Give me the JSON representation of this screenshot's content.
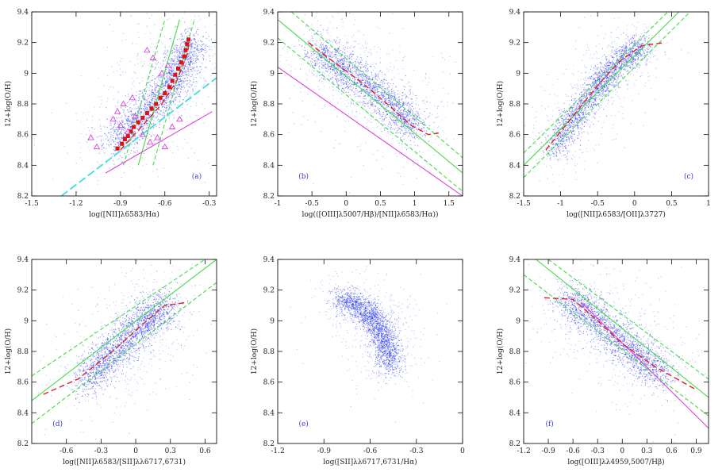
{
  "figure": {
    "panel_count": 6,
    "layout": "2x3 grid"
  },
  "colors": {
    "scatter": "#2233ee",
    "fit_solid": "#44dd44",
    "fit_dashed": "#44dd44",
    "median": "#dd2222",
    "cyan_line": "#44dddd",
    "magenta": "#dd44dd",
    "marker": "#dd1111",
    "panel_label": "#3a3ad0"
  },
  "chart_data": [
    {
      "type": "scatter",
      "id": "a",
      "label": "(a)",
      "xlabel": "log([NII]λ6583/Hα)",
      "ylabel": "12+log(O/H)",
      "xlim": [
        -1.5,
        -0.25
      ],
      "ylim": [
        8.2,
        9.4
      ],
      "xticks": [
        -1.5,
        -1.2,
        -0.9,
        -0.6,
        -0.3
      ],
      "xtick_labels": [
        "-1.5",
        "-1.2",
        "-0.9",
        "-0.6",
        "-0.3"
      ],
      "yticks": [
        8.2,
        8.4,
        8.6,
        8.8,
        9.0,
        9.2,
        9.4
      ],
      "ytick_labels": [
        "8.2",
        "8.4",
        "8.6",
        "8.8",
        "9",
        "9.2",
        "9.4"
      ],
      "cloud": {
        "n": 2200,
        "path": [
          [
            -0.95,
            8.55
          ],
          [
            -0.8,
            8.68
          ],
          [
            -0.65,
            8.82
          ],
          [
            -0.55,
            8.95
          ],
          [
            -0.47,
            9.1
          ],
          [
            -0.42,
            9.2
          ]
        ],
        "width": 0.05,
        "halo": 0.35
      },
      "lines": [
        {
          "name": "fit",
          "style": "solid",
          "color": "#44dd44",
          "points": [
            [
              -0.78,
              8.4
            ],
            [
              -0.5,
              9.35
            ]
          ]
        },
        {
          "name": "fit-upper",
          "style": "dashed",
          "color": "#44dd44",
          "points": [
            [
              -0.88,
              8.4
            ],
            [
              -0.6,
              9.35
            ]
          ]
        },
        {
          "name": "fit-lower",
          "style": "dashed",
          "color": "#44dd44",
          "points": [
            [
              -0.68,
              8.4
            ],
            [
              -0.4,
              9.35
            ]
          ]
        },
        {
          "name": "cyan",
          "style": "dashed",
          "color": "#44dddd",
          "points": [
            [
              -1.3,
              8.2
            ],
            [
              -0.25,
              8.97
            ]
          ]
        },
        {
          "name": "magenta",
          "style": "solid",
          "color": "#dd44dd",
          "points": [
            [
              -1.0,
              8.35
            ],
            [
              -0.28,
              8.75
            ]
          ]
        },
        {
          "name": "median",
          "style": "dashed",
          "color": "#dd2222",
          "points": [
            [
              -0.9,
              8.5
            ],
            [
              -0.75,
              8.66
            ],
            [
              -0.62,
              8.8
            ],
            [
              -0.52,
              8.95
            ],
            [
              -0.45,
              9.12
            ],
            [
              -0.43,
              9.22
            ]
          ]
        }
      ],
      "squares": [
        [
          -0.92,
          8.51
        ],
        [
          -0.89,
          8.54
        ],
        [
          -0.87,
          8.57
        ],
        [
          -0.85,
          8.59
        ],
        [
          -0.83,
          8.62
        ],
        [
          -0.81,
          8.65
        ],
        [
          -0.78,
          8.68
        ],
        [
          -0.75,
          8.71
        ],
        [
          -0.72,
          8.74
        ],
        [
          -0.69,
          8.77
        ],
        [
          -0.66,
          8.8
        ],
        [
          -0.63,
          8.84
        ],
        [
          -0.6,
          8.87
        ],
        [
          -0.57,
          8.91
        ],
        [
          -0.55,
          8.95
        ],
        [
          -0.53,
          8.99
        ],
        [
          -0.51,
          9.03
        ],
        [
          -0.49,
          9.07
        ],
        [
          -0.47,
          9.11
        ],
        [
          -0.46,
          9.15
        ],
        [
          -0.45,
          9.19
        ],
        [
          -0.44,
          9.22
        ]
      ],
      "triangles": [
        [
          -1.1,
          8.58
        ],
        [
          -1.06,
          8.52
        ],
        [
          -0.95,
          8.7
        ],
        [
          -0.9,
          8.66
        ],
        [
          -0.85,
          8.62
        ],
        [
          -0.8,
          8.72
        ],
        [
          -0.92,
          8.75
        ],
        [
          -0.75,
          8.6
        ],
        [
          -0.7,
          8.55
        ],
        [
          -0.65,
          8.58
        ],
        [
          -0.55,
          8.65
        ],
        [
          -0.6,
          8.52
        ],
        [
          -0.5,
          8.7
        ],
        [
          -0.88,
          8.8
        ],
        [
          -0.82,
          8.84
        ],
        [
          -0.62,
          9.0
        ],
        [
          -0.68,
          9.1
        ],
        [
          -0.72,
          9.15
        ],
        [
          -0.58,
          9.05
        ]
      ]
    },
    {
      "type": "scatter",
      "id": "b",
      "label": "(b)",
      "xlabel": "log(([OIII]λ5007/Hβ)/[NII]λ6583/Hα))",
      "ylabel": "12+log(O/H)",
      "xlim": [
        -1.0,
        1.7
      ],
      "ylim": [
        8.2,
        9.4
      ],
      "xticks": [
        -1.0,
        -0.5,
        0,
        0.5,
        1.0,
        1.5
      ],
      "xtick_labels": [
        "-1",
        "-0.5",
        "0",
        "0.5",
        "1",
        "1.5"
      ],
      "yticks": [
        8.2,
        8.4,
        8.6,
        8.8,
        9.0,
        9.2,
        9.4
      ],
      "ytick_labels": [
        "8.2",
        "8.4",
        "8.6",
        "8.8",
        "9",
        "9.2",
        "9.4"
      ],
      "cloud": {
        "n": 2200,
        "path": [
          [
            -0.45,
            9.15
          ],
          [
            -0.1,
            9.05
          ],
          [
            0.3,
            8.93
          ],
          [
            0.7,
            8.78
          ],
          [
            1.0,
            8.65
          ]
        ],
        "width": 0.05,
        "halo": 0.3
      },
      "lines": [
        {
          "name": "fit",
          "style": "solid",
          "color": "#44dd44",
          "points": [
            [
              -1.0,
              9.35
            ],
            [
              1.7,
              8.35
            ]
          ]
        },
        {
          "name": "fit-upper",
          "style": "dashed",
          "color": "#44dd44",
          "points": [
            [
              -0.8,
              9.4
            ],
            [
              1.7,
              8.45
            ]
          ]
        },
        {
          "name": "fit-lower",
          "style": "dashed",
          "color": "#44dd44",
          "points": [
            [
              -1.0,
              9.23
            ],
            [
              1.7,
              8.23
            ]
          ]
        },
        {
          "name": "magenta",
          "style": "solid",
          "color": "#dd44dd",
          "points": [
            [
              -1.0,
              9.04
            ],
            [
              1.7,
              8.2
            ]
          ]
        },
        {
          "name": "median",
          "style": "dashed",
          "color": "#dd2222",
          "points": [
            [
              -0.55,
              9.2
            ],
            [
              -0.2,
              9.08
            ],
            [
              0.2,
              8.95
            ],
            [
              0.6,
              8.8
            ],
            [
              0.95,
              8.66
            ],
            [
              1.2,
              8.6
            ],
            [
              1.35,
              8.61
            ]
          ]
        }
      ]
    },
    {
      "type": "scatter",
      "id": "c",
      "label": "(c)",
      "xlabel": "log([NII]λ6583/[OII]λ3727)",
      "ylabel": "12+log(O/H)",
      "xlim": [
        -1.5,
        1.0
      ],
      "ylim": [
        8.2,
        9.4
      ],
      "xticks": [
        -1.5,
        -1.0,
        -0.5,
        0,
        0.5,
        1.0
      ],
      "xtick_labels": [
        "-1.5",
        "-1",
        "-0.5",
        "0",
        "0.5",
        "1"
      ],
      "yticks": [
        8.2,
        8.4,
        8.6,
        8.8,
        9.0,
        9.2,
        9.4
      ],
      "ytick_labels": [
        "8.2",
        "8.4",
        "8.6",
        "8.8",
        "9",
        "9.2",
        "9.4"
      ],
      "cloud": {
        "n": 2200,
        "path": [
          [
            -1.1,
            8.5
          ],
          [
            -0.8,
            8.72
          ],
          [
            -0.5,
            8.92
          ],
          [
            -0.2,
            9.08
          ],
          [
            0.1,
            9.18
          ]
        ],
        "width": 0.035,
        "halo": 0.2
      },
      "lines": [
        {
          "name": "fit",
          "style": "solid",
          "color": "#44dd44",
          "points": [
            [
              -1.5,
              8.4
            ],
            [
              0.6,
              9.4
            ]
          ]
        },
        {
          "name": "fit-upper",
          "style": "dashed",
          "color": "#44dd44",
          "points": [
            [
              -1.5,
              8.48
            ],
            [
              0.45,
              9.4
            ]
          ]
        },
        {
          "name": "fit-lower",
          "style": "dashed",
          "color": "#44dd44",
          "points": [
            [
              -1.5,
              8.32
            ],
            [
              0.75,
              9.4
            ]
          ]
        },
        {
          "name": "median",
          "style": "dashed",
          "color": "#dd2222",
          "points": [
            [
              -1.2,
              8.5
            ],
            [
              -0.9,
              8.68
            ],
            [
              -0.5,
              8.92
            ],
            [
              -0.2,
              9.08
            ],
            [
              0.1,
              9.18
            ],
            [
              0.4,
              9.2
            ]
          ]
        }
      ]
    },
    {
      "type": "scatter",
      "id": "d",
      "label": "(d)",
      "xlabel": "log([NII]λ6583/[SII]λλ6717,6731)",
      "ylabel": "12+log(O/H)",
      "xlim": [
        -0.9,
        0.7
      ],
      "ylim": [
        8.2,
        9.4
      ],
      "xticks": [
        -0.6,
        -0.3,
        0,
        0.3,
        0.6
      ],
      "xtick_labels": [
        "-0.6",
        "-0.3",
        "0",
        "0.3",
        "0.6"
      ],
      "yticks": [
        8.2,
        8.4,
        8.6,
        8.8,
        9.0,
        9.2,
        9.4
      ],
      "ytick_labels": [
        "8.2",
        "8.4",
        "8.6",
        "8.8",
        "9",
        "9.2",
        "9.4"
      ],
      "cloud": {
        "n": 2200,
        "path": [
          [
            -0.45,
            8.6
          ],
          [
            -0.25,
            8.75
          ],
          [
            -0.05,
            8.9
          ],
          [
            0.1,
            9.02
          ],
          [
            0.25,
            9.1
          ]
        ],
        "width": 0.05,
        "halo": 0.3
      },
      "lines": [
        {
          "name": "fit",
          "style": "solid",
          "color": "#44dd44",
          "points": [
            [
              -0.9,
              8.48
            ],
            [
              0.7,
              9.4
            ]
          ]
        },
        {
          "name": "fit-upper",
          "style": "dashed",
          "color": "#44dd44",
          "points": [
            [
              -0.9,
              8.64
            ],
            [
              0.6,
              9.4
            ]
          ]
        },
        {
          "name": "fit-lower",
          "style": "dashed",
          "color": "#44dd44",
          "points": [
            [
              -0.9,
              8.33
            ],
            [
              0.7,
              9.25
            ]
          ]
        },
        {
          "name": "median",
          "style": "dashed",
          "color": "#dd2222",
          "points": [
            [
              -0.8,
              8.52
            ],
            [
              -0.5,
              8.62
            ],
            [
              -0.2,
              8.8
            ],
            [
              0.05,
              8.97
            ],
            [
              0.25,
              9.1
            ],
            [
              0.45,
              9.12
            ]
          ]
        }
      ]
    },
    {
      "type": "scatter",
      "id": "e",
      "label": "(e)",
      "xlabel": "log([SII]λλ6717,6731/Hα)",
      "ylabel": "12+log(O/H)",
      "xlim": [
        -1.2,
        0.0
      ],
      "ylim": [
        8.2,
        9.4
      ],
      "xticks": [
        -1.2,
        -0.9,
        -0.6,
        -0.3,
        0
      ],
      "xtick_labels": [
        "-1.2",
        "-0.9",
        "-0.6",
        "-0.3",
        "0"
      ],
      "yticks": [
        8.2,
        8.4,
        8.6,
        8.8,
        9.0,
        9.2,
        9.4
      ],
      "ytick_labels": [
        "8.2",
        "8.4",
        "8.6",
        "8.8",
        "9",
        "9.2",
        "9.4"
      ],
      "cloud": {
        "n": 2200,
        "path": [
          [
            -0.8,
            9.15
          ],
          [
            -0.65,
            9.08
          ],
          [
            -0.55,
            8.98
          ],
          [
            -0.5,
            8.85
          ],
          [
            -0.47,
            8.7
          ]
        ],
        "width": 0.035,
        "halo": 0.15
      },
      "lines": []
    },
    {
      "type": "scatter",
      "id": "f",
      "label": "(f)",
      "xlabel": "log([OIII]λλ4959,5007/Hβ)",
      "ylabel": "12+log(O/H)",
      "xlim": [
        -1.2,
        1.05
      ],
      "ylim": [
        8.2,
        9.4
      ],
      "xticks": [
        -1.2,
        -0.9,
        -0.6,
        -0.3,
        0,
        0.3,
        0.6,
        0.9
      ],
      "xtick_labels": [
        "-1.2",
        "-0.9",
        "-0.6",
        "-0.3",
        "0",
        "0.3",
        "0.6",
        "0.9"
      ],
      "yticks": [
        8.2,
        8.4,
        8.6,
        8.8,
        9.0,
        9.2,
        9.4
      ],
      "ytick_labels": [
        "8.2",
        "8.4",
        "8.6",
        "8.8",
        "9",
        "9.2",
        "9.4"
      ],
      "cloud": {
        "n": 2200,
        "path": [
          [
            -0.7,
            9.15
          ],
          [
            -0.4,
            9.05
          ],
          [
            -0.1,
            8.9
          ],
          [
            0.2,
            8.77
          ],
          [
            0.5,
            8.65
          ]
        ],
        "width": 0.05,
        "halo": 0.3
      },
      "lines": [
        {
          "name": "fit",
          "style": "solid",
          "color": "#44dd44",
          "points": [
            [
              -1.05,
              9.4
            ],
            [
              1.05,
              8.5
            ]
          ]
        },
        {
          "name": "fit-upper",
          "style": "dashed",
          "color": "#44dd44",
          "points": [
            [
              -0.9,
              9.4
            ],
            [
              1.05,
              8.62
            ]
          ]
        },
        {
          "name": "fit-lower",
          "style": "dashed",
          "color": "#44dd44",
          "points": [
            [
              -1.2,
              9.3
            ],
            [
              1.05,
              8.38
            ]
          ]
        },
        {
          "name": "magenta",
          "style": "solid",
          "color": "#dd44dd",
          "points": [
            [
              -0.5,
              9.12
            ],
            [
              1.05,
              8.3
            ]
          ]
        },
        {
          "name": "median",
          "style": "dashed",
          "color": "#dd2222",
          "points": [
            [
              -0.95,
              9.15
            ],
            [
              -0.6,
              9.14
            ],
            [
              -0.3,
              9.0
            ],
            [
              0.0,
              8.85
            ],
            [
              0.4,
              8.7
            ],
            [
              0.9,
              8.55
            ]
          ]
        }
      ]
    }
  ]
}
